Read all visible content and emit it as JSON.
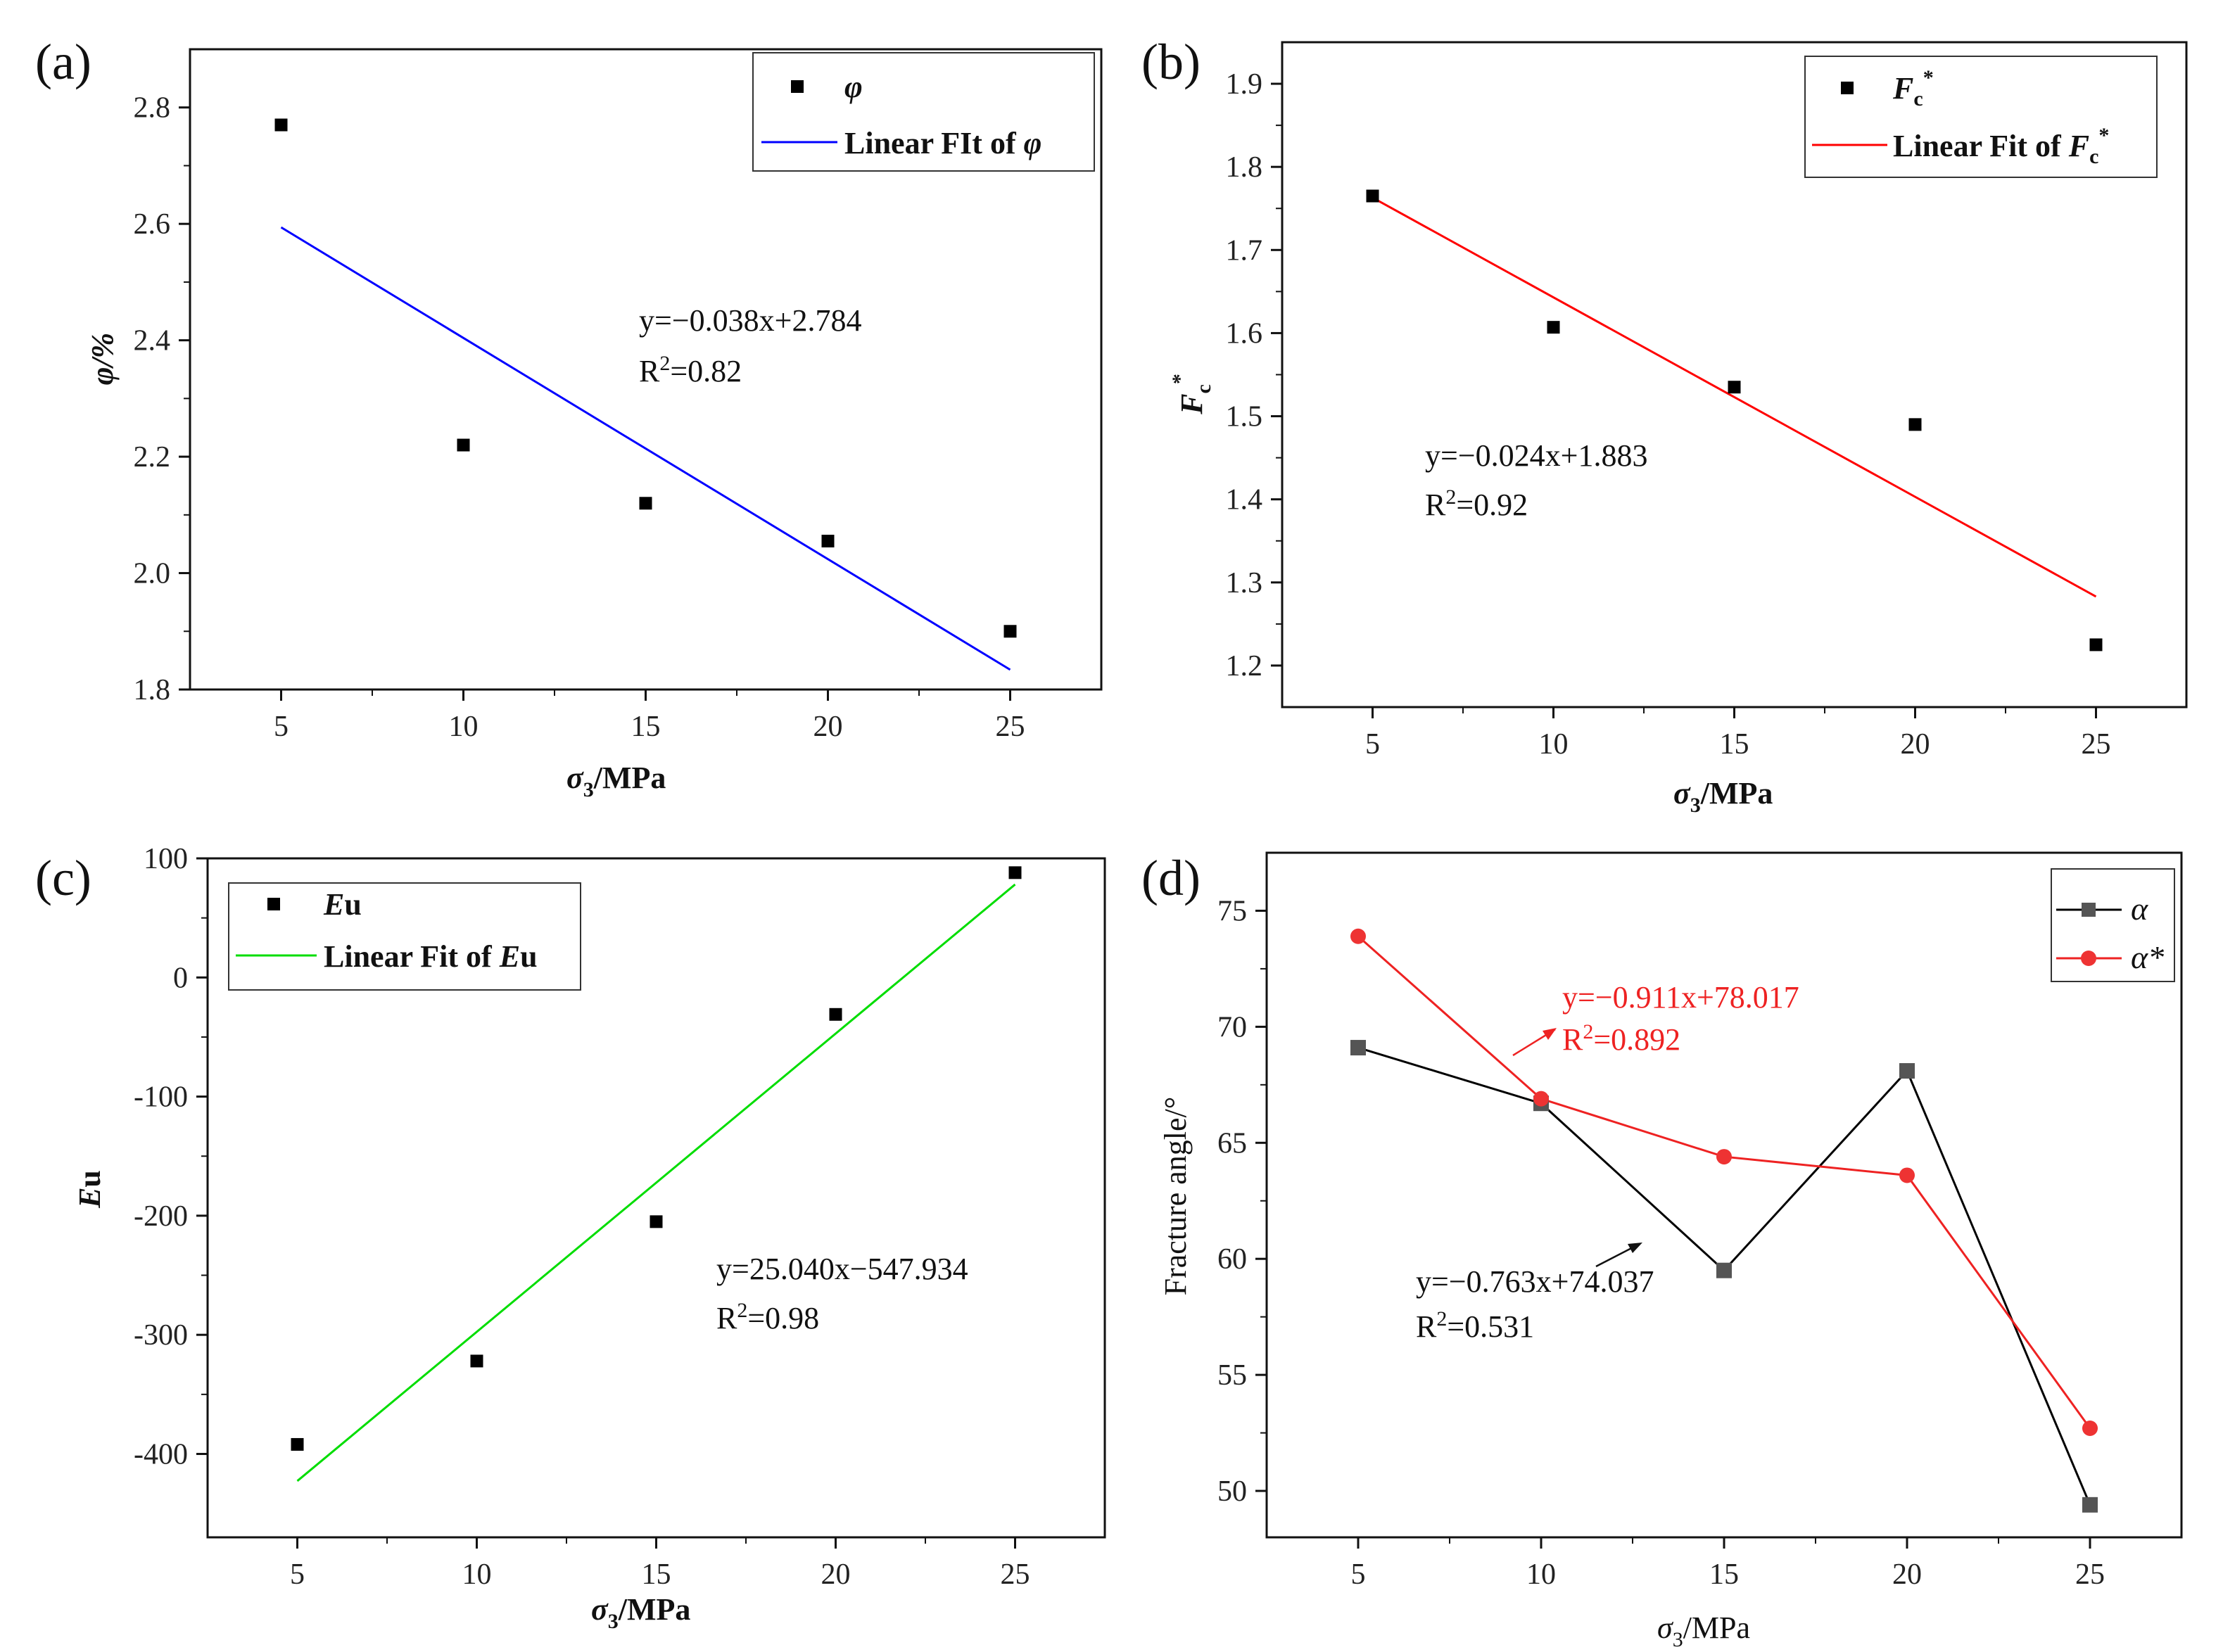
{
  "chart_data": [
    {
      "panel": "(a)",
      "type": "scatter",
      "x": [
        5,
        10,
        15,
        20,
        25
      ],
      "y": [
        2.77,
        2.22,
        2.12,
        2.055,
        1.9
      ],
      "fit": {
        "x": [
          5,
          25
        ],
        "y": [
          2.594,
          1.834
        ]
      },
      "xlabel": {
        "main": "σ",
        "sub": "3",
        "rest": "/MPa"
      },
      "ylabel": "φ/%",
      "xlim": [
        2.5,
        27.5
      ],
      "ylim": [
        1.8,
        2.9
      ],
      "xticks": [
        5,
        10,
        15,
        20,
        25
      ],
      "yticks": [
        1.8,
        2.0,
        2.2,
        2.4,
        2.6,
        2.8
      ],
      "ytick_labels": [
        "1.8",
        "2.0",
        "2.2",
        "2.4",
        "2.6",
        "2.8"
      ],
      "legend": {
        "series": "φ",
        "fit_prefix": "Linear FIt of ",
        "fit_symbol": "φ"
      },
      "equation": "y=−0.038x+2.784",
      "r2": {
        "pre": "R",
        "sup": "2",
        "post": "=0.82"
      },
      "color": "#0000ff"
    },
    {
      "panel": "(b)",
      "type": "scatter",
      "x": [
        5,
        10,
        15,
        20,
        25
      ],
      "y": [
        1.765,
        1.607,
        1.535,
        1.49,
        1.225
      ],
      "fit": {
        "x": [
          5,
          25
        ],
        "y": [
          1.763,
          1.283
        ]
      },
      "xlabel": {
        "main": "σ",
        "sub": "3",
        "rest": "/MPa"
      },
      "ylabel": {
        "main": "F",
        "sub": "c",
        "sup": "*"
      },
      "xlim": [
        2.5,
        27.5
      ],
      "ylim": [
        1.15,
        1.95
      ],
      "xticks": [
        5,
        10,
        15,
        20,
        25
      ],
      "yticks": [
        1.2,
        1.3,
        1.4,
        1.5,
        1.6,
        1.7,
        1.8,
        1.9
      ],
      "ytick_labels": [
        "1.2",
        "1.3",
        "1.4",
        "1.5",
        "1.6",
        "1.7",
        "1.8",
        "1.9"
      ],
      "legend": {
        "series": {
          "main": "F",
          "sub": "c",
          "sup": "*"
        },
        "fit_prefix": "Linear Fit of "
      },
      "equation": "y=−0.024x+1.883",
      "r2": {
        "pre": "R",
        "sup": "2",
        "post": "=0.92"
      },
      "color": "#ff0000"
    },
    {
      "panel": "(c)",
      "type": "scatter",
      "x": [
        5,
        10,
        15,
        20,
        25
      ],
      "y": [
        -392,
        -322,
        -205,
        -31,
        88
      ],
      "fit": {
        "x": [
          5,
          25
        ],
        "y": [
          -422.7,
          78.1
        ]
      },
      "xlabel": {
        "main": "σ",
        "sub": "3",
        "rest": "/MPa"
      },
      "ylabel": {
        "it": "E",
        "rest": "u"
      },
      "xlim": [
        2.5,
        27.5
      ],
      "ylim": [
        -470,
        100
      ],
      "xticks": [
        5,
        10,
        15,
        20,
        25
      ],
      "yticks": [
        -400,
        -300,
        -200,
        -100,
        0,
        100
      ],
      "ytick_labels": [
        "-400",
        "-300",
        "-200",
        "-100",
        "0",
        "100"
      ],
      "legend": {
        "series": {
          "it": "E",
          "rest": "u"
        },
        "fit_prefix": "Linear Fit of "
      },
      "equation": "y=25.040x−547.934",
      "r2": {
        "pre": "R",
        "sup": "2",
        "post": "=0.98"
      },
      "color": "#00dd00"
    },
    {
      "panel": "(d)",
      "type": "line",
      "x": [
        5,
        10,
        15,
        20,
        25
      ],
      "series": [
        {
          "name": "α",
          "values": [
            69.1,
            66.7,
            59.5,
            68.1,
            49.4
          ],
          "color": "#000000",
          "marker": "#555555",
          "shape": "square"
        },
        {
          "name": "α*",
          "values": [
            73.9,
            66.9,
            64.4,
            63.6,
            52.7
          ],
          "color": "#ee2222",
          "marker": "#ee3333",
          "shape": "circle"
        }
      ],
      "xlabel": {
        "main": "σ",
        "sub": "3",
        "rest": "/MPa"
      },
      "ylabel": "Fracture angle/°",
      "xlim": [
        2.5,
        27.5
      ],
      "ylim": [
        48,
        77.5
      ],
      "xticks": [
        5,
        10,
        15,
        20,
        25
      ],
      "yticks": [
        50,
        55,
        60,
        65,
        70,
        75
      ],
      "ytick_labels": [
        "50",
        "55",
        "60",
        "65",
        "70",
        "75"
      ],
      "annotations": [
        {
          "equation": "y=−0.911x+78.017",
          "r2": {
            "pre": "R",
            "sup": "2",
            "post": "=0.892"
          },
          "color": "#ee2222"
        },
        {
          "equation": "y=−0.763x+74.037",
          "r2": {
            "pre": "R",
            "sup": "2",
            "post": "=0.531"
          },
          "color": "#111111"
        }
      ]
    }
  ]
}
